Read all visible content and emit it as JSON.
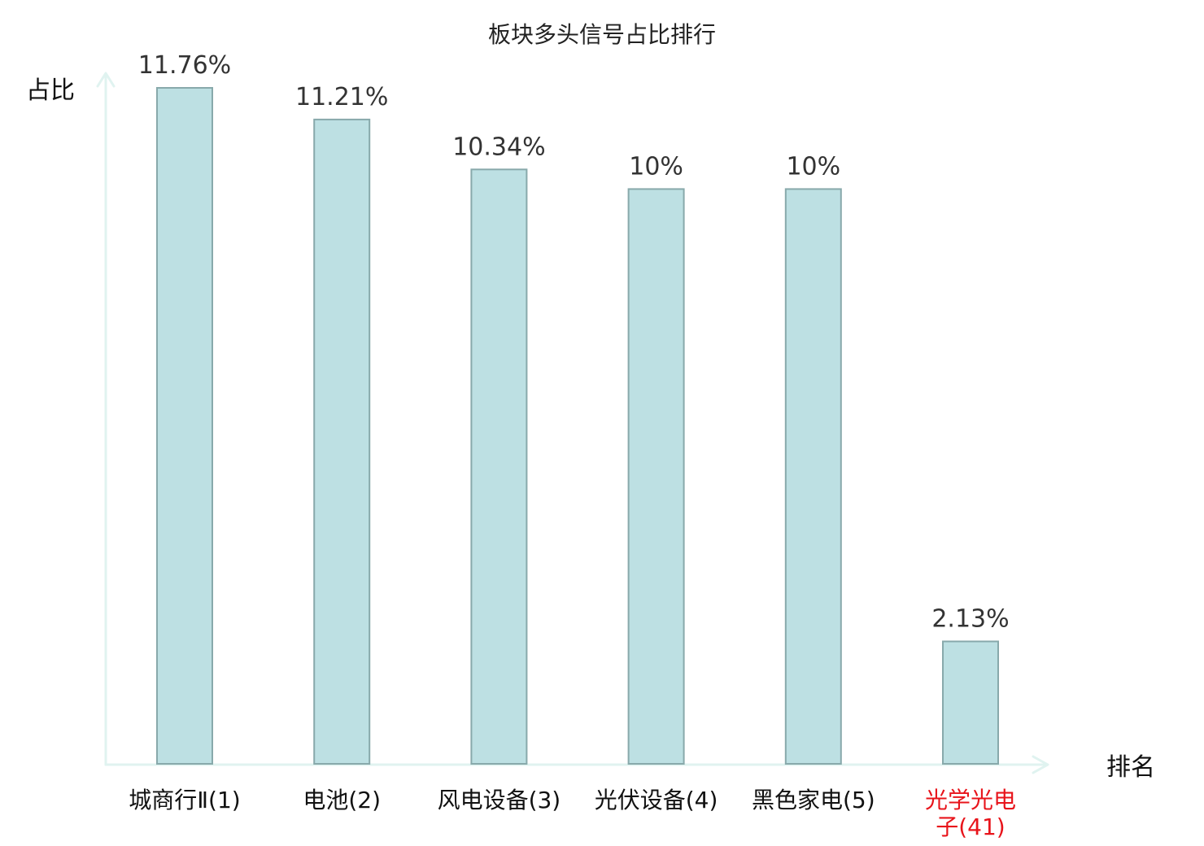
{
  "chart_data": {
    "type": "bar",
    "title": "板块多头信号占比排行",
    "ylabel": "占比",
    "xlabel": "排名",
    "ylim": [
      0,
      11.76
    ],
    "grid": false,
    "legend": "none",
    "categories": [
      {
        "label": "城商行Ⅱ(1)",
        "lines": [
          "城商行Ⅱ(1)"
        ],
        "highlight": false
      },
      {
        "label": "电池(2)",
        "lines": [
          "电池(2)"
        ],
        "highlight": false
      },
      {
        "label": "风电设备(3)",
        "lines": [
          "风电设备(3)"
        ],
        "highlight": false
      },
      {
        "label": "光伏设备(4)",
        "lines": [
          "光伏设备(4)"
        ],
        "highlight": false
      },
      {
        "label": "黑色家电(5)",
        "lines": [
          "黑色家电(5)"
        ],
        "highlight": false
      },
      {
        "label": "光学光电子(41)",
        "lines": [
          "光学光电",
          "子(41)"
        ],
        "highlight": true
      }
    ],
    "values": [
      11.76,
      11.21,
      10.34,
      10,
      10,
      2.13
    ],
    "value_labels": [
      "11.76%",
      "11.21%",
      "10.34%",
      "10%",
      "10%",
      "2.13%"
    ],
    "colors": {
      "bar_fill": "#bde0e3",
      "bar_stroke": "#88a9ab",
      "axis": "#e0f3f0",
      "highlight_text": "#e8141b",
      "normal_text": "#111111"
    }
  }
}
